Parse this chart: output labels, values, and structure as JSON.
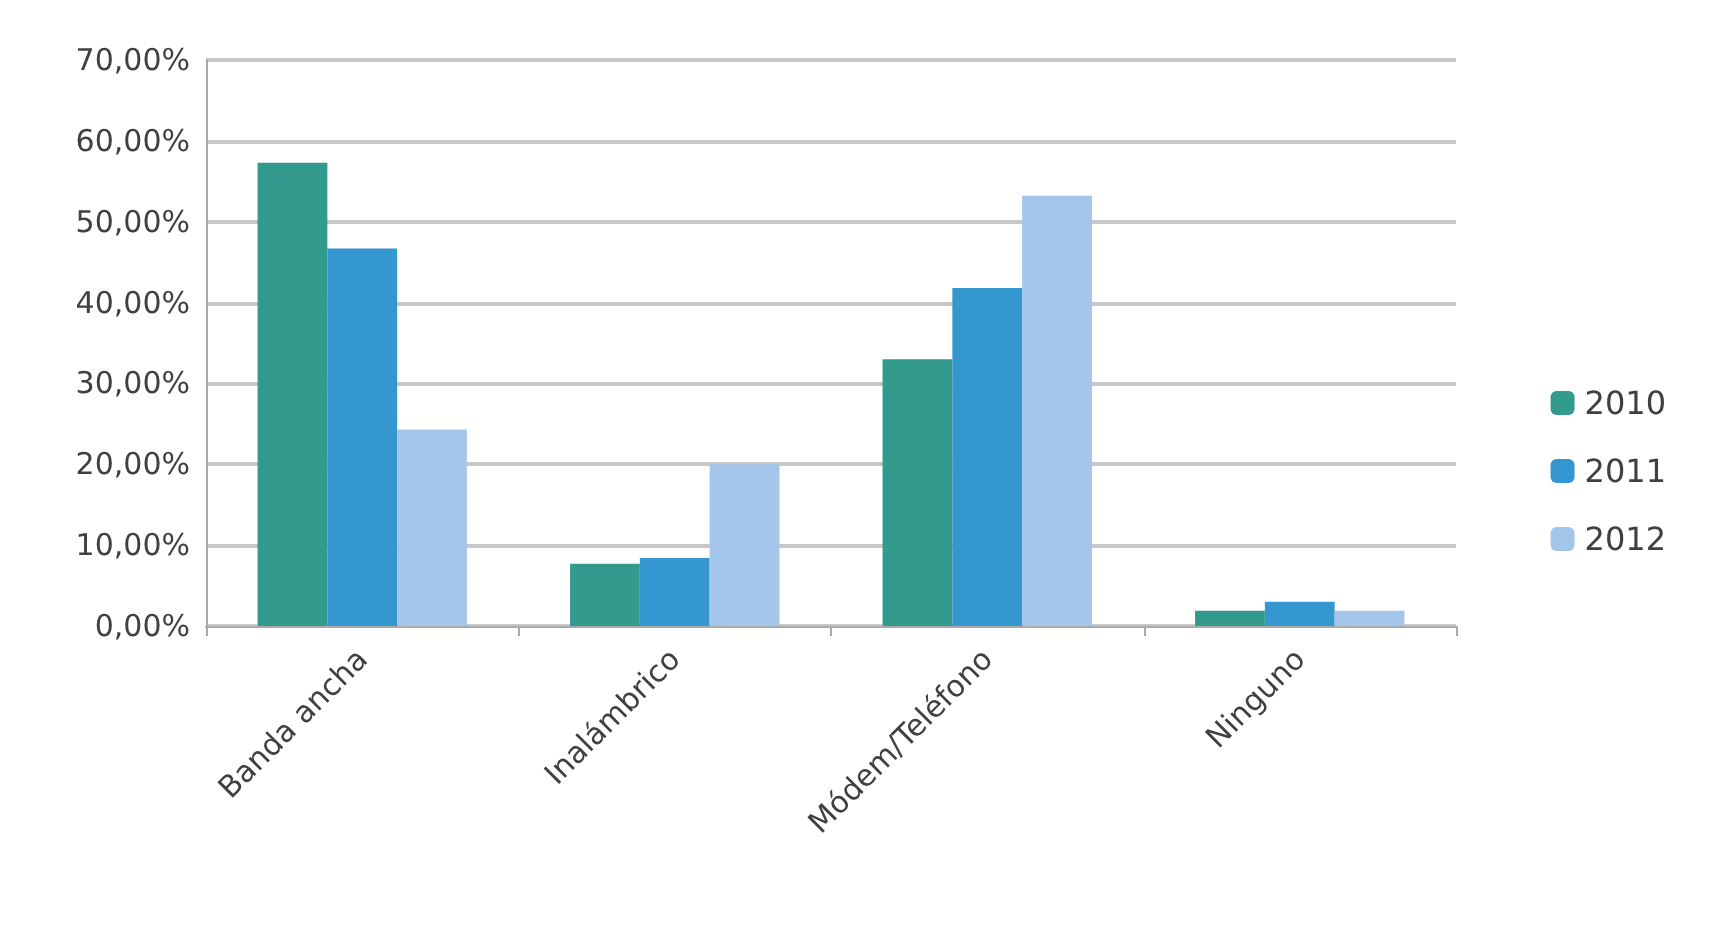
{
  "chart_data": {
    "type": "bar",
    "categories": [
      "Banda ancha",
      "Inalámbrico",
      "Módem/Teléfono",
      "Ninguno"
    ],
    "series": [
      {
        "name": "2010",
        "color": "#339b8e",
        "values": [
          57.3,
          7.7,
          33.0,
          1.9
        ]
      },
      {
        "name": "2011",
        "color": "#3597cf",
        "values": [
          46.7,
          8.4,
          41.8,
          3.0
        ]
      },
      {
        "name": "2012",
        "color": "#a3c6ea",
        "values": [
          24.3,
          20.0,
          53.2,
          1.9
        ]
      }
    ],
    "ylim": [
      0,
      70
    ],
    "yticks": [
      {
        "value": 0,
        "label": "0,00%"
      },
      {
        "value": 10,
        "label": "10,00%"
      },
      {
        "value": 20,
        "label": "20,00%"
      },
      {
        "value": 30,
        "label": "30,00%"
      },
      {
        "value": 40,
        "label": "40,00%"
      },
      {
        "value": 50,
        "label": "50,00%"
      },
      {
        "value": 60,
        "label": "60,00%"
      },
      {
        "value": 70,
        "label": "70,00%"
      }
    ],
    "grid": "y",
    "legend": "right"
  }
}
